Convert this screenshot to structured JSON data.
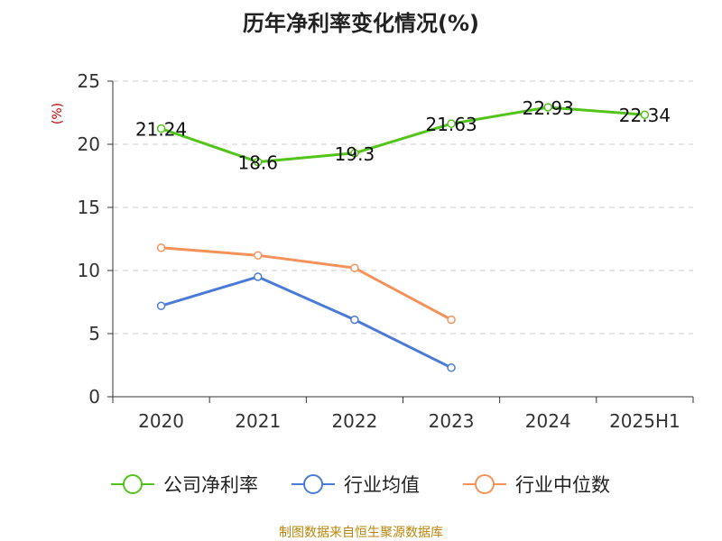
{
  "chart_data": {
    "type": "line",
    "title": "历年净利率变化情况(%)",
    "ylabel": "(%)",
    "xlabel": "",
    "categories": [
      "2020",
      "2021",
      "2022",
      "2023",
      "2024",
      "2025H1"
    ],
    "ylim": [
      0,
      25
    ],
    "yticks": [
      0,
      5,
      10,
      15,
      20,
      25
    ],
    "ytick_labels": [
      "0",
      "5",
      "10",
      "15",
      "20",
      "25"
    ],
    "grid": true,
    "legend_position": "bottom",
    "series": [
      {
        "name": "公司净利率",
        "color": "#52c41a",
        "values": [
          21.24,
          18.6,
          19.3,
          21.63,
          22.93,
          22.34
        ],
        "labels": [
          "21.24",
          "18.6",
          "19.3",
          "21.63",
          "22.93",
          "22.34"
        ]
      },
      {
        "name": "行业均值",
        "color": "#4a7bd8",
        "values": [
          7.2,
          9.5,
          6.1,
          2.3,
          null,
          null
        ],
        "labels": []
      },
      {
        "name": "行业中位数",
        "color": "#f5925a",
        "values": [
          11.8,
          11.2,
          10.2,
          6.1,
          null,
          null
        ],
        "labels": []
      }
    ]
  },
  "footer": {
    "source": "制图数据来自恒生聚源数据库"
  }
}
